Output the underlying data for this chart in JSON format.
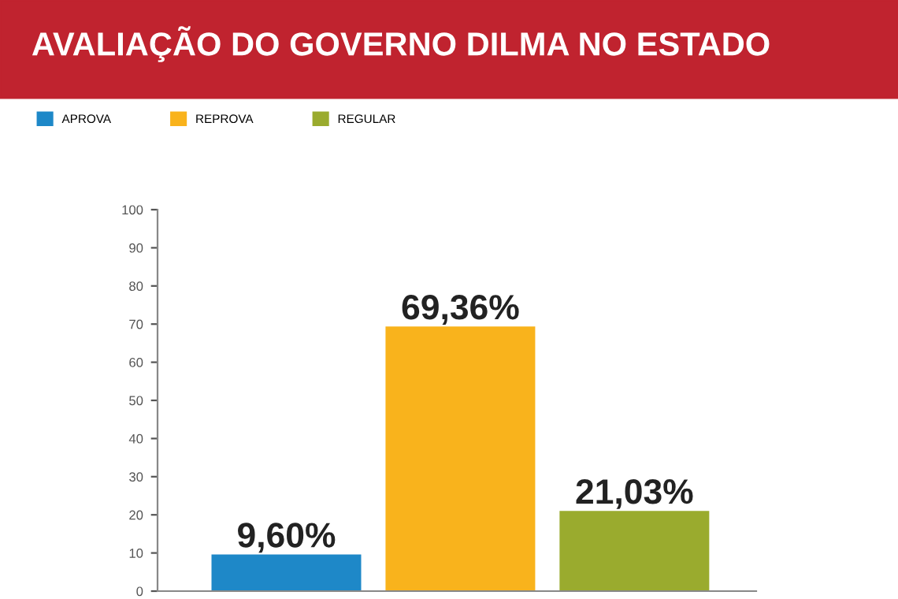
{
  "chart_data": {
    "type": "bar",
    "title": "AVALIAÇÃO DO GOVERNO DILMA NO ESTADO",
    "categories": [
      null,
      null,
      null
    ],
    "series": [
      {
        "name": "APROVA",
        "color": "#1e88c8",
        "values": [
          9.6,
          null,
          null
        ],
        "value_labels": [
          "9,60%",
          null,
          null
        ]
      },
      {
        "name": "REPROVA",
        "color": "#f9b31c",
        "values": [
          null,
          69.36,
          null
        ],
        "value_labels": [
          null,
          "69,36%",
          null
        ]
      },
      {
        "name": "REGULAR",
        "color": "#9aab2e",
        "values": [
          null,
          null,
          21.03
        ],
        "value_labels": [
          null,
          null,
          "21,03%"
        ]
      }
    ],
    "ylim": [
      0,
      100
    ],
    "yticks": [
      0,
      10,
      20,
      30,
      40,
      50,
      60,
      70,
      80,
      90,
      100
    ],
    "grid": false,
    "legend": "top left",
    "tick_labels": "y"
  }
}
